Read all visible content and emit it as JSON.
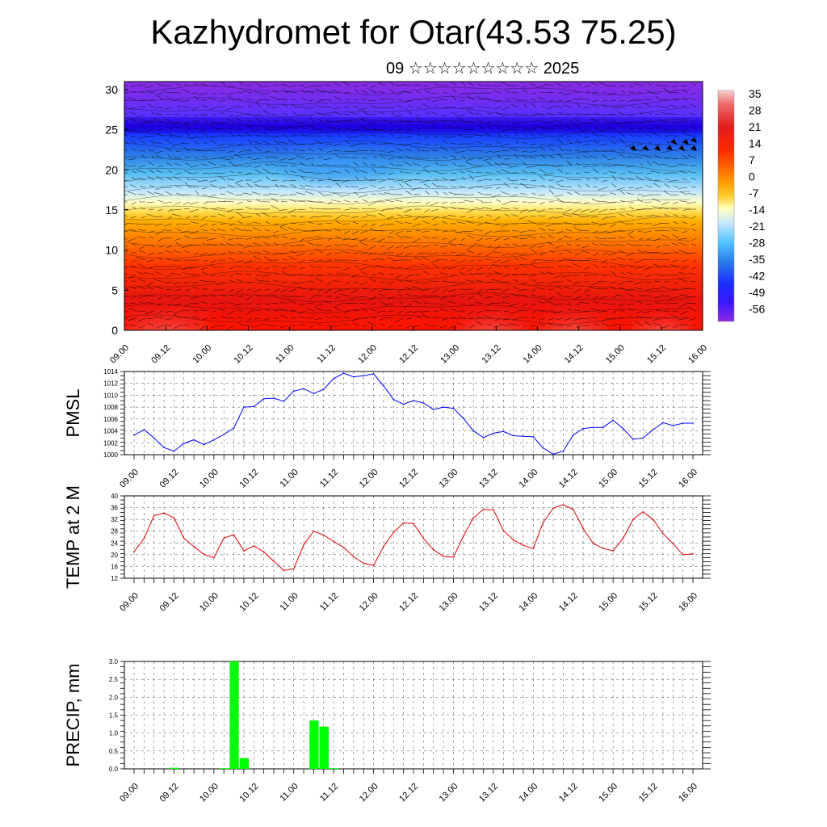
{
  "header": {
    "title": "Kazhydromet for Otar(43.53 75.25)",
    "subtitle": "09 ☆☆☆☆☆☆☆☆☆ 2025"
  },
  "time_labels": [
    "09.00",
    "09.12",
    "10.00",
    "10.12",
    "11.00",
    "11.12",
    "12.00",
    "12.12",
    "13.00",
    "13.12",
    "14.00",
    "14.12",
    "15.00",
    "15.12",
    "16.00"
  ],
  "colorbar": {
    "labels": [
      "35",
      "28",
      "21",
      "14",
      "7",
      "0",
      "-7",
      "-14",
      "-21",
      "-28",
      "-35",
      "-42",
      "-49",
      "-56"
    ],
    "colors": [
      "#f4c9c9",
      "#ec5a5a",
      "#e31a1a",
      "#ff2a00",
      "#ff6000",
      "#ff9a00",
      "#ffd000",
      "#ffffb0",
      "#c8ecff",
      "#4fc3ff",
      "#2b7de9",
      "#1c2bff",
      "#3b16ff",
      "#8a2be2"
    ]
  },
  "chart_data": [
    {
      "type": "heatmap",
      "title": "",
      "ylabel": "",
      "ylim": [
        0,
        31
      ],
      "yticks": [
        "0",
        "5",
        "10",
        "15",
        "20",
        "25",
        "30"
      ],
      "x": [
        "09.00",
        "09.12",
        "10.00",
        "10.12",
        "11.00",
        "11.12",
        "12.00",
        "12.12",
        "13.00",
        "13.12",
        "14.00",
        "14.12",
        "15.00",
        "15.12",
        "16.00"
      ],
      "value_range": [
        -56,
        35
      ],
      "grid": false
    },
    {
      "type": "line",
      "ylabel": "PMSL",
      "ylim": [
        1000,
        1014
      ],
      "yticks": [
        "1000",
        "1002",
        "1004",
        "1006",
        "1008",
        "1010",
        "1012",
        "1014"
      ],
      "x": [
        "09.00",
        "09.03",
        "09.06",
        "09.09",
        "09.12",
        "09.15",
        "09.18",
        "09.21",
        "10.00",
        "10.03",
        "10.06",
        "10.09",
        "10.12",
        "10.15",
        "10.18",
        "10.21",
        "11.00",
        "11.03",
        "11.06",
        "11.09",
        "11.12",
        "11.15",
        "11.18",
        "11.21",
        "12.00",
        "12.03",
        "12.06",
        "12.09",
        "12.12",
        "12.15",
        "12.18",
        "12.21",
        "13.00",
        "13.03",
        "13.06",
        "13.09",
        "13.12",
        "13.15",
        "13.18",
        "13.21",
        "14.00",
        "14.03",
        "14.06",
        "14.09",
        "14.12",
        "14.15",
        "14.18",
        "14.21",
        "15.00",
        "15.03",
        "15.06",
        "15.09",
        "15.12",
        "15.15",
        "15.18",
        "15.21",
        "16.00"
      ],
      "series": [
        {
          "color": "#0000ff",
          "values": [
            1003.3,
            1004.2,
            1002.8,
            1001.2,
            1000.6,
            1001.9,
            1002.5,
            1001.7,
            1002.5,
            1003.4,
            1004.5,
            1008.0,
            1008.1,
            1009.4,
            1009.5,
            1009.0,
            1010.7,
            1011.1,
            1010.3,
            1011.0,
            1012.8,
            1013.7,
            1013.1,
            1013.3,
            1013.6,
            1011.6,
            1009.3,
            1008.5,
            1009.1,
            1008.7,
            1007.6,
            1008.0,
            1007.8,
            1006.1,
            1004.0,
            1002.9,
            1003.6,
            1003.9,
            1003.2,
            1003.1,
            1003.0,
            1001.1,
            1000.1,
            1000.6,
            1003.3,
            1004.4,
            1004.6,
            1004.6,
            1005.8,
            1004.4,
            1002.6,
            1002.8,
            1004.2,
            1005.4,
            1004.9,
            1005.3,
            1005.3
          ]
        }
      ],
      "grid": true
    },
    {
      "type": "line",
      "ylabel": "TEMP at 2 M",
      "ylim": [
        12,
        40
      ],
      "yticks": [
        "12",
        "16",
        "20",
        "24",
        "28",
        "32",
        "36",
        "40"
      ],
      "x": [
        "09.00",
        "09.03",
        "09.06",
        "09.09",
        "09.12",
        "09.15",
        "09.18",
        "09.21",
        "10.00",
        "10.03",
        "10.06",
        "10.09",
        "10.12",
        "10.15",
        "10.18",
        "10.21",
        "11.00",
        "11.03",
        "11.06",
        "11.09",
        "11.12",
        "11.15",
        "11.18",
        "11.21",
        "12.00",
        "12.03",
        "12.06",
        "12.09",
        "12.12",
        "12.15",
        "12.18",
        "12.21",
        "13.00",
        "13.03",
        "13.06",
        "13.09",
        "13.12",
        "13.15",
        "13.18",
        "13.21",
        "14.00",
        "14.03",
        "14.06",
        "14.09",
        "14.12",
        "14.15",
        "14.18",
        "14.21",
        "15.00",
        "15.03",
        "15.06",
        "15.09",
        "15.12",
        "15.15",
        "15.18",
        "15.21",
        "16.00"
      ],
      "series": [
        {
          "color": "#e00000",
          "values": [
            21,
            25.5,
            33.3,
            34.2,
            32.5,
            25.6,
            22.8,
            20.1,
            19.0,
            25.7,
            26.8,
            21.3,
            23.0,
            21.0,
            17.8,
            14.7,
            15.2,
            23.4,
            28.0,
            26.7,
            24.5,
            22.5,
            19.3,
            17.1,
            16.4,
            22.8,
            27.6,
            30.8,
            30.6,
            25.5,
            21.7,
            19.4,
            19.2,
            26.3,
            32.5,
            35.4,
            35.3,
            28.3,
            25.0,
            23.2,
            22.1,
            31.0,
            35.8,
            37.0,
            35.4,
            29.0,
            23.8,
            22.2,
            21.3,
            25.5,
            32.0,
            34.6,
            32.0,
            27.2,
            23.7,
            20.0,
            20.3
          ]
        }
      ],
      "grid": true
    },
    {
      "type": "bar",
      "ylabel": "PRECIP, mm",
      "ylim": [
        0,
        3.0
      ],
      "yticks": [
        "0.0",
        "0.5",
        "1.0",
        "1.5",
        "2.0",
        "2.5",
        "3.0"
      ],
      "x": [
        "09.00",
        "09.03",
        "09.06",
        "09.09",
        "09.12",
        "09.15",
        "09.18",
        "09.21",
        "10.00",
        "10.03",
        "10.06",
        "10.09",
        "10.12",
        "10.15",
        "10.18",
        "10.21",
        "11.00",
        "11.03",
        "11.06",
        "11.09",
        "11.12",
        "11.15",
        "11.18",
        "11.21",
        "12.00",
        "12.03",
        "12.06",
        "12.09",
        "12.12",
        "12.15",
        "12.18",
        "12.21",
        "13.00",
        "13.03",
        "13.06",
        "13.09",
        "13.12",
        "13.15",
        "13.18",
        "13.21",
        "14.00",
        "14.03",
        "14.06",
        "14.09",
        "14.12",
        "14.15",
        "14.18",
        "14.21",
        "15.00",
        "15.03",
        "15.06",
        "15.09",
        "15.12",
        "15.15",
        "15.18",
        "15.21",
        "16.00"
      ],
      "series": [
        {
          "color": "#00ff00",
          "values": [
            0,
            0,
            0,
            0,
            0.03,
            0,
            0,
            0,
            0,
            0.02,
            3.0,
            0.3,
            0,
            0,
            0,
            0,
            0,
            0,
            1.35,
            1.18,
            0.02,
            0,
            0,
            0,
            0,
            0,
            0,
            0,
            0,
            0,
            0,
            0,
            0,
            0,
            0,
            0,
            0,
            0,
            0,
            0,
            0,
            0,
            0,
            0,
            0,
            0,
            0,
            0,
            0,
            0,
            0,
            0,
            0,
            0,
            0,
            0,
            0
          ]
        }
      ],
      "grid": true
    }
  ]
}
